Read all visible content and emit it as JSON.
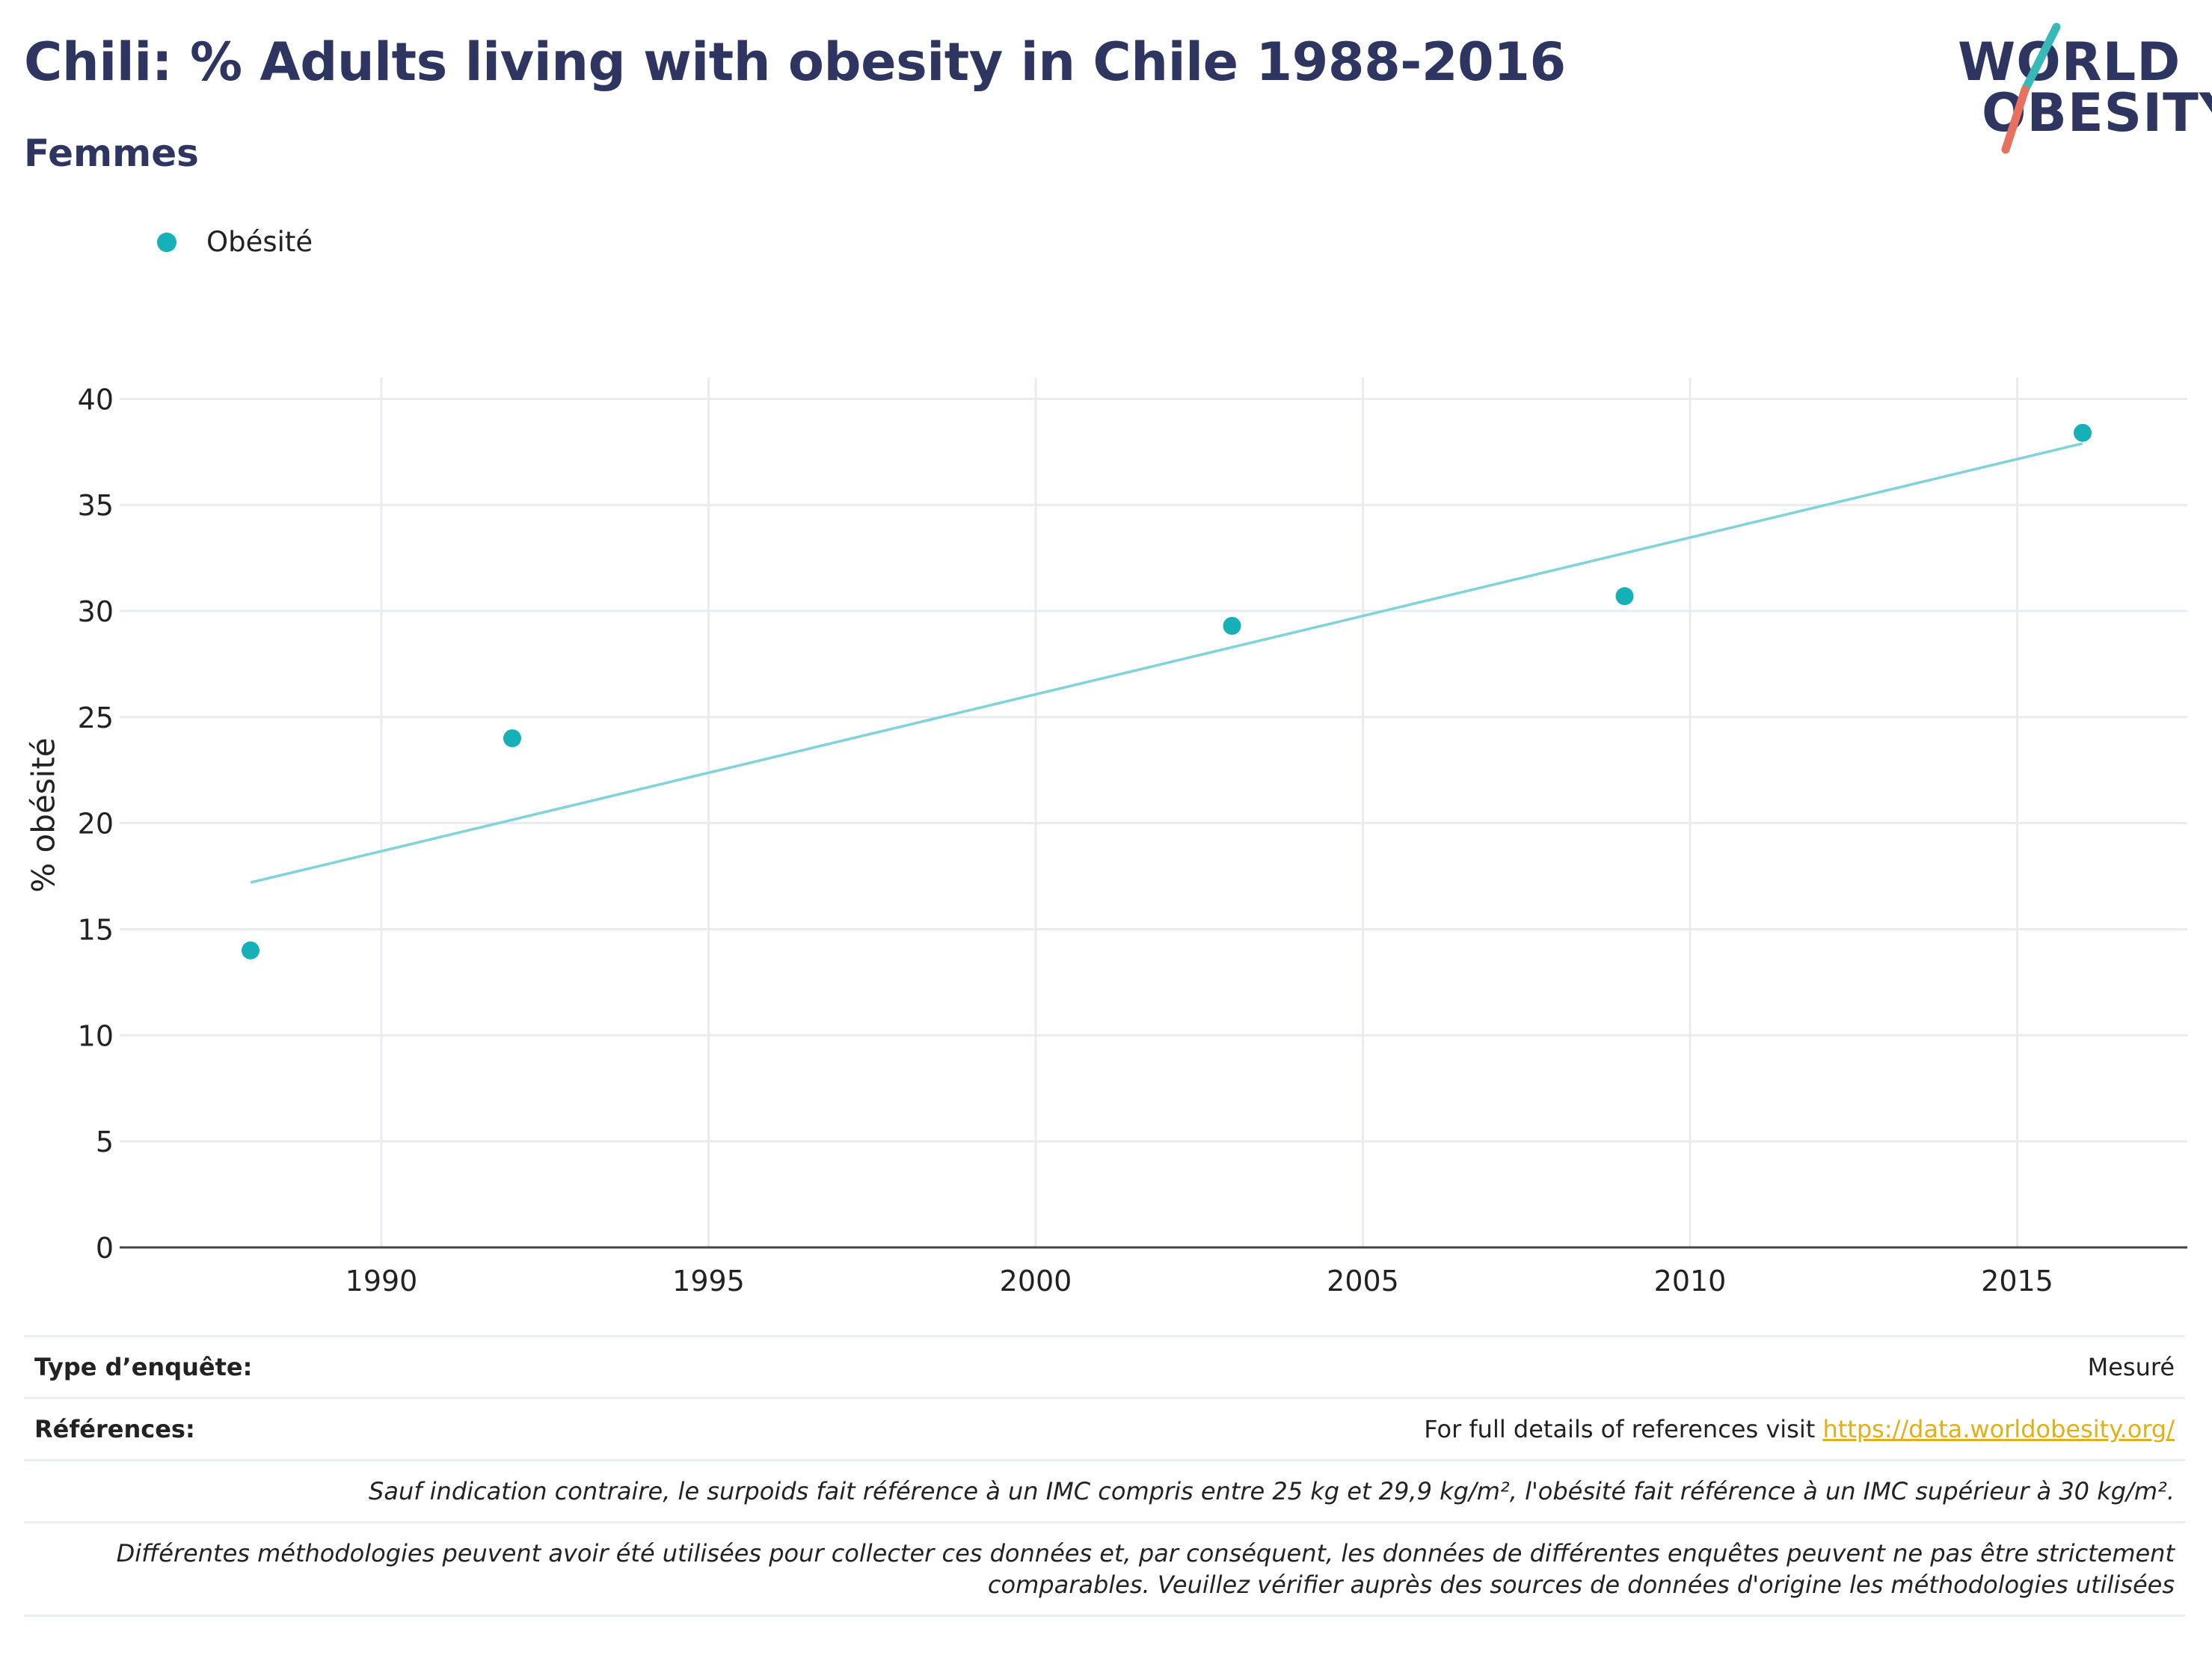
{
  "header": {
    "title": "Chili: % Adults living with obesity in Chile 1988-2016",
    "subtitle": "Femmes"
  },
  "logo": {
    "line1": "WORLD",
    "line2": "OBESITY"
  },
  "colors": {
    "point": "#16b0b8",
    "trend": "#7fd3d9",
    "title": "#2d3560",
    "grid": "#e9ecef",
    "link": "#e0b01a"
  },
  "chart_data": {
    "type": "scatter",
    "title": "Chili: % Adults living with obesity in Chile 1988-2016",
    "subtitle": "Femmes",
    "ylabel": "% obésité",
    "xlabel": "",
    "xlim": [
      1986,
      2017.6
    ],
    "ylim": [
      0,
      41
    ],
    "x_ticks": [
      1990,
      1995,
      2000,
      2005,
      2010,
      2015
    ],
    "y_ticks": [
      0,
      5,
      10,
      15,
      20,
      25,
      30,
      35,
      40
    ],
    "legend": "top-left",
    "grid": true,
    "series": [
      {
        "name": "Obésité",
        "points": [
          {
            "x": 1988,
            "y": 14.0
          },
          {
            "x": 1992,
            "y": 24.0
          },
          {
            "x": 2003,
            "y": 29.3
          },
          {
            "x": 2009,
            "y": 30.7
          },
          {
            "x": 2016,
            "y": 38.4
          }
        ]
      }
    ],
    "trendline": {
      "x": [
        1988,
        2016
      ],
      "y": [
        17.2,
        37.9
      ]
    }
  },
  "footer": {
    "survey_type_label": "Type d’enquête:",
    "survey_type_value": "Mesuré",
    "references_label": "Références:",
    "references_text": "For full details of references visit ",
    "references_link": "https://data.worldobesity.org/",
    "note1": "Sauf indication contraire, le surpoids fait référence à un IMC compris entre 25 kg et 29,9 kg/m², l'obésité fait référence à un IMC supérieur à 30 kg/m².",
    "note2_line1": "Différentes méthodologies peuvent avoir été utilisées pour collecter ces données et, par conséquent, les données de différentes enquêtes peuvent ne pas être strictement",
    "note2_line2": "comparables. Veuillez vérifier auprès des sources de données d'origine les méthodologies utilisées"
  }
}
